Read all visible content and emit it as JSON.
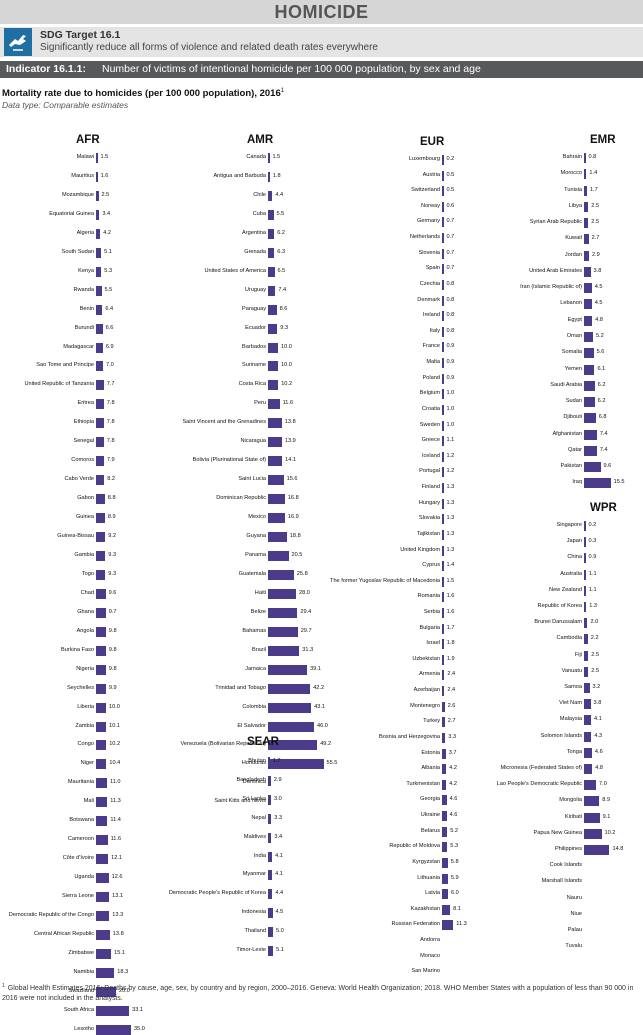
{
  "header": {
    "title": "HOMICIDE"
  },
  "target": {
    "label": "SDG Target 16.1",
    "text": "Significantly reduce all forms of violence and related death rates everywhere"
  },
  "indicator": {
    "label": "Indicator 16.1.1:",
    "text": "Number of victims of intentional homicide per 100 000 population, by sex and age"
  },
  "footnote": "Global Health Estimates 2016: Deaths by cause, age, sex, by country and by region, 2000–2016. Geneva: World Health Organization; 2018. WHO Member States with a population of less than 90 000 in 2016 were not included in the analysis.",
  "footnote_mark": "1",
  "chart_data": {
    "type": "bar",
    "orientation": "horizontal",
    "title": "Mortality rate due to homicides (per 100 000 population), 2016",
    "title_footnote": "1",
    "subtitle": "Data type: Comparable estimates",
    "bar_color": "#4b3b8a",
    "panels": [
      {
        "region": "AFR",
        "rows": [
          {
            "label": "Malawi",
            "value": 1.5
          },
          {
            "label": "Mauritius",
            "value": 1.6
          },
          {
            "label": "Mozambique",
            "value": 2.5
          },
          {
            "label": "Equatorial Guinea",
            "value": 3.4
          },
          {
            "label": "Algeria",
            "value": 4.2
          },
          {
            "label": "South Sudan",
            "value": 5.1
          },
          {
            "label": "Kenya",
            "value": 5.3
          },
          {
            "label": "Rwanda",
            "value": 5.5
          },
          {
            "label": "Benin",
            "value": 6.4
          },
          {
            "label": "Burundi",
            "value": 6.6
          },
          {
            "label": "Madagascar",
            "value": 6.9
          },
          {
            "label": "Sao Tome and Principe",
            "value": 7.0
          },
          {
            "label": "United Republic of Tanzania",
            "value": 7.7
          },
          {
            "label": "Eritrea",
            "value": 7.8
          },
          {
            "label": "Ethiopia",
            "value": 7.8
          },
          {
            "label": "Senegal",
            "value": 7.8
          },
          {
            "label": "Comoros",
            "value": 7.9
          },
          {
            "label": "Cabo Verde",
            "value": 8.2
          },
          {
            "label": "Gabon",
            "value": 8.8
          },
          {
            "label": "Guinea",
            "value": 8.9
          },
          {
            "label": "Guinea-Bissau",
            "value": 9.2
          },
          {
            "label": "Gambia",
            "value": 9.3
          },
          {
            "label": "Togo",
            "value": 9.3
          },
          {
            "label": "Chad",
            "value": 9.6
          },
          {
            "label": "Ghana",
            "value": 9.7
          },
          {
            "label": "Angola",
            "value": 9.8
          },
          {
            "label": "Burkina Faso",
            "value": 9.8
          },
          {
            "label": "Nigeria",
            "value": 9.8
          },
          {
            "label": "Seychelles",
            "value": 9.9
          },
          {
            "label": "Liberia",
            "value": 10.0
          },
          {
            "label": "Zambia",
            "value": 10.1
          },
          {
            "label": "Congo",
            "value": 10.2
          },
          {
            "label": "Niger",
            "value": 10.4
          },
          {
            "label": "Mauritania",
            "value": 11.0
          },
          {
            "label": "Mali",
            "value": 11.3
          },
          {
            "label": "Botswana",
            "value": 11.4
          },
          {
            "label": "Cameroon",
            "value": 11.6
          },
          {
            "label": "Côte d'Ivoire",
            "value": 12.1
          },
          {
            "label": "Uganda",
            "value": 12.6
          },
          {
            "label": "Sierra Leone",
            "value": 13.1
          },
          {
            "label": "Democratic Republic of the Congo",
            "value": 13.3
          },
          {
            "label": "Central African Republic",
            "value": 13.8
          },
          {
            "label": "Zimbabwe",
            "value": 15.1
          },
          {
            "label": "Namibia",
            "value": 18.3
          },
          {
            "label": "Swaziland",
            "value": 20.0
          },
          {
            "label": "South Africa",
            "value": 33.1
          },
          {
            "label": "Lesotho",
            "value": 35.0
          }
        ]
      },
      {
        "region": "AMR",
        "rows": [
          {
            "label": "Canada",
            "value": 1.5
          },
          {
            "label": "Antigua and Barbuda",
            "value": 1.8
          },
          {
            "label": "Chile",
            "value": 4.4
          },
          {
            "label": "Cuba",
            "value": 5.5
          },
          {
            "label": "Argentina",
            "value": 6.2
          },
          {
            "label": "Grenada",
            "value": 6.3
          },
          {
            "label": "United States of America",
            "value": 6.5
          },
          {
            "label": "Uruguay",
            "value": 7.4
          },
          {
            "label": "Paraguay",
            "value": 8.6
          },
          {
            "label": "Ecuador",
            "value": 9.3
          },
          {
            "label": "Barbados",
            "value": 10.0
          },
          {
            "label": "Suriname",
            "value": 10.0
          },
          {
            "label": "Costa Rica",
            "value": 10.2
          },
          {
            "label": "Peru",
            "value": 11.6
          },
          {
            "label": "Saint Vincent and the Grenadines",
            "value": 13.8
          },
          {
            "label": "Nicaragua",
            "value": 13.9
          },
          {
            "label": "Bolivia (Plurinational State of)",
            "value": 14.1
          },
          {
            "label": "Saint Lucia",
            "value": 15.6
          },
          {
            "label": "Dominican Republic",
            "value": 16.8
          },
          {
            "label": "Mexico",
            "value": 16.9
          },
          {
            "label": "Guyana",
            "value": 18.8
          },
          {
            "label": "Panama",
            "value": 20.5
          },
          {
            "label": "Guatemala",
            "value": 25.8
          },
          {
            "label": "Haiti",
            "value": 28.0
          },
          {
            "label": "Belize",
            "value": 29.4
          },
          {
            "label": "Bahamas",
            "value": 29.7
          },
          {
            "label": "Brazil",
            "value": 31.3
          },
          {
            "label": "Jamaica",
            "value": 39.1
          },
          {
            "label": "Trinidad and Tobago",
            "value": 42.2
          },
          {
            "label": "Colombia",
            "value": 43.1
          },
          {
            "label": "El Salvador",
            "value": 46.0
          },
          {
            "label": "Venezuela (Bolivarian Republic of)",
            "value": 49.2
          },
          {
            "label": "Honduras",
            "value": 55.5
          },
          {
            "label": "Dominica",
            "value": null
          },
          {
            "label": "Saint Kitts and Nevis",
            "value": null
          }
        ]
      },
      {
        "region": "SEAR",
        "rows": [
          {
            "label": "Bhutan",
            "value": 1.7
          },
          {
            "label": "Bangladesh",
            "value": 2.9
          },
          {
            "label": "Sri Lanka",
            "value": 3.0
          },
          {
            "label": "Nepal",
            "value": 3.3
          },
          {
            "label": "Maldives",
            "value": 3.4
          },
          {
            "label": "India",
            "value": 4.1
          },
          {
            "label": "Myanmar",
            "value": 4.1
          },
          {
            "label": "Democratic People's Republic of Korea",
            "value": 4.4
          },
          {
            "label": "Indonesia",
            "value": 4.5
          },
          {
            "label": "Thailand",
            "value": 5.0
          },
          {
            "label": "Timor-Leste",
            "value": 5.1
          }
        ]
      },
      {
        "region": "EUR",
        "rows": [
          {
            "label": "Luxembourg",
            "value": 0.2
          },
          {
            "label": "Austria",
            "value": 0.5
          },
          {
            "label": "Switzerland",
            "value": 0.5
          },
          {
            "label": "Norway",
            "value": 0.6
          },
          {
            "label": "Germany",
            "value": 0.7
          },
          {
            "label": "Netherlands",
            "value": 0.7
          },
          {
            "label": "Slovenia",
            "value": 0.7
          },
          {
            "label": "Spain",
            "value": 0.7
          },
          {
            "label": "Czechia",
            "value": 0.8
          },
          {
            "label": "Denmark",
            "value": 0.8
          },
          {
            "label": "Ireland",
            "value": 0.8
          },
          {
            "label": "Italy",
            "value": 0.8
          },
          {
            "label": "France",
            "value": 0.9
          },
          {
            "label": "Malta",
            "value": 0.9
          },
          {
            "label": "Poland",
            "value": 0.9
          },
          {
            "label": "Belgium",
            "value": 1.0
          },
          {
            "label": "Croatia",
            "value": 1.0
          },
          {
            "label": "Sweden",
            "value": 1.0
          },
          {
            "label": "Greece",
            "value": 1.1
          },
          {
            "label": "Iceland",
            "value": 1.2
          },
          {
            "label": "Portugal",
            "value": 1.2
          },
          {
            "label": "Finland",
            "value": 1.3
          },
          {
            "label": "Hungary",
            "value": 1.3
          },
          {
            "label": "Slovakia",
            "value": 1.3
          },
          {
            "label": "Tajikistan",
            "value": 1.3
          },
          {
            "label": "United Kingdom",
            "value": 1.3
          },
          {
            "label": "Cyprus",
            "value": 1.4
          },
          {
            "label": "The former Yugoslav Republic of Macedonia",
            "value": 1.5
          },
          {
            "label": "Romania",
            "value": 1.6
          },
          {
            "label": "Serbia",
            "value": 1.6
          },
          {
            "label": "Bulgaria",
            "value": 1.7
          },
          {
            "label": "Israel",
            "value": 1.8
          },
          {
            "label": "Uzbekistan",
            "value": 1.9
          },
          {
            "label": "Armenia",
            "value": 2.4
          },
          {
            "label": "Azerbaijan",
            "value": 2.4
          },
          {
            "label": "Montenegro",
            "value": 2.6
          },
          {
            "label": "Turkey",
            "value": 2.7
          },
          {
            "label": "Bosnia and Herzegovina",
            "value": 3.3
          },
          {
            "label": "Estonia",
            "value": 3.7
          },
          {
            "label": "Albania",
            "value": 4.2
          },
          {
            "label": "Turkmenistan",
            "value": 4.2
          },
          {
            "label": "Georgia",
            "value": 4.6
          },
          {
            "label": "Ukraine",
            "value": 4.6
          },
          {
            "label": "Belarus",
            "value": 5.2
          },
          {
            "label": "Republic of Moldova",
            "value": 5.3
          },
          {
            "label": "Kyrgyzstan",
            "value": 5.8
          },
          {
            "label": "Lithuania",
            "value": 5.9
          },
          {
            "label": "Latvia",
            "value": 6.0
          },
          {
            "label": "Kazakhstan",
            "value": 8.1
          },
          {
            "label": "Russian Federation",
            "value": 11.3
          },
          {
            "label": "Andorra",
            "value": null
          },
          {
            "label": "Monaco",
            "value": null
          },
          {
            "label": "San Marino",
            "value": null
          }
        ]
      },
      {
        "region": "EMR",
        "rows": [
          {
            "label": "Bahrain",
            "value": 0.8
          },
          {
            "label": "Morocco",
            "value": 1.4
          },
          {
            "label": "Tunisia",
            "value": 1.7
          },
          {
            "label": "Libya",
            "value": 2.5
          },
          {
            "label": "Syrian Arab Republic",
            "value": 2.5
          },
          {
            "label": "Kuwait",
            "value": 2.7
          },
          {
            "label": "Jordan",
            "value": 2.9
          },
          {
            "label": "United Arab Emirates",
            "value": 3.8
          },
          {
            "label": "Iran (Islamic Republic of)",
            "value": 4.5
          },
          {
            "label": "Lebanon",
            "value": 4.5
          },
          {
            "label": "Egypt",
            "value": 4.8
          },
          {
            "label": "Oman",
            "value": 5.2
          },
          {
            "label": "Somalia",
            "value": 5.6
          },
          {
            "label": "Yemen",
            "value": 6.1
          },
          {
            "label": "Saudi Arabia",
            "value": 6.2
          },
          {
            "label": "Sudan",
            "value": 6.2
          },
          {
            "label": "Djibouti",
            "value": 6.8
          },
          {
            "label": "Afghanistan",
            "value": 7.4
          },
          {
            "label": "Qatar",
            "value": 7.4
          },
          {
            "label": "Pakistan",
            "value": 9.6
          },
          {
            "label": "Iraq",
            "value": 15.5
          }
        ]
      },
      {
        "region": "WPR",
        "rows": [
          {
            "label": "Singapore",
            "value": 0.2
          },
          {
            "label": "Japan",
            "value": 0.3
          },
          {
            "label": "China",
            "value": 0.9
          },
          {
            "label": "Australia",
            "value": 1.1
          },
          {
            "label": "New Zealand",
            "value": 1.1
          },
          {
            "label": "Republic of Korea",
            "value": 1.3
          },
          {
            "label": "Brunei Darussalam",
            "value": 2.0
          },
          {
            "label": "Cambodia",
            "value": 2.2
          },
          {
            "label": "Fiji",
            "value": 2.5
          },
          {
            "label": "Vanuatu",
            "value": 2.5
          },
          {
            "label": "Samoa",
            "value": 3.2
          },
          {
            "label": "Viet Nam",
            "value": 3.8
          },
          {
            "label": "Malaysia",
            "value": 4.1
          },
          {
            "label": "Solomon Islands",
            "value": 4.3
          },
          {
            "label": "Tonga",
            "value": 4.6
          },
          {
            "label": "Micronesia (Federated States of)",
            "value": 4.8
          },
          {
            "label": "Lao People's Democratic Republic",
            "value": 7.0
          },
          {
            "label": "Mongolia",
            "value": 8.9
          },
          {
            "label": "Kiribati",
            "value": 9.1
          },
          {
            "label": "Papua New Guinea",
            "value": 10.2
          },
          {
            "label": "Philippines",
            "value": 14.8
          },
          {
            "label": "Cook Islands",
            "value": null
          },
          {
            "label": "Marshall Islands",
            "value": null
          },
          {
            "label": "Nauru",
            "value": null
          },
          {
            "label": "Niue",
            "value": null
          },
          {
            "label": "Palau",
            "value": null
          },
          {
            "label": "Tuvalu",
            "value": null
          }
        ]
      }
    ]
  }
}
